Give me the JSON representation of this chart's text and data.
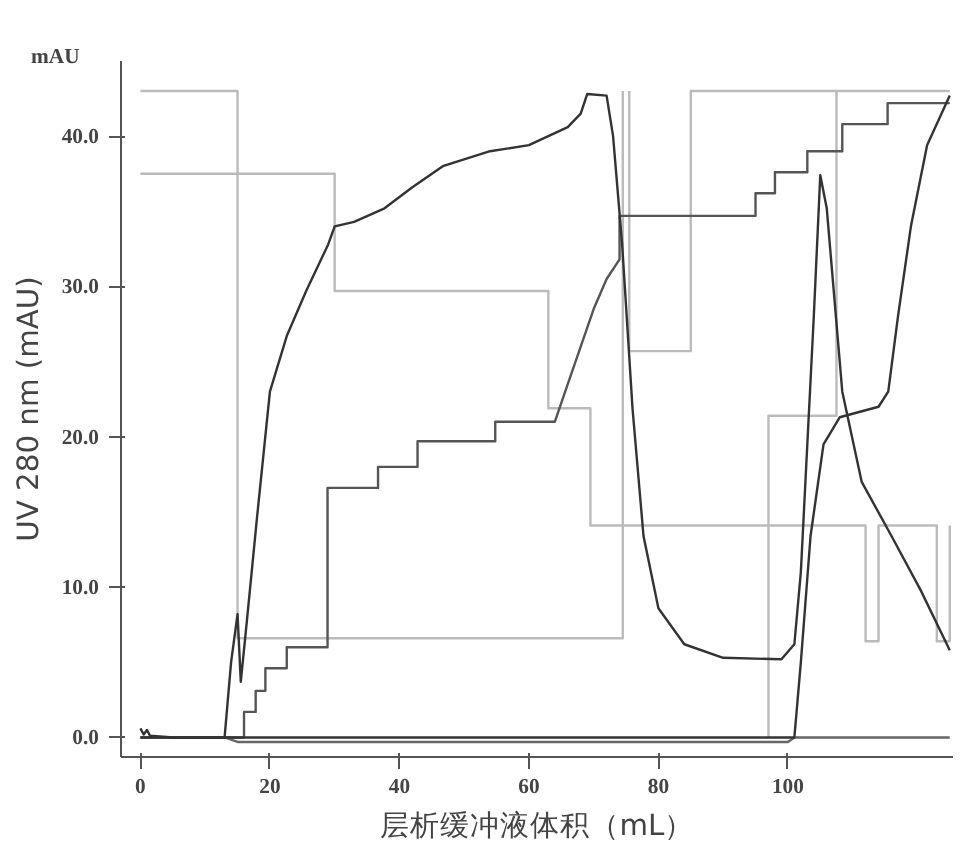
{
  "chart_data": {
    "type": "line",
    "xlabel": "层析缓冲液体积（mL）",
    "ylabel": "UV 280 nm (mAU)",
    "annotations": [
      "mAU"
    ],
    "xlim": [
      -3,
      125.5
    ],
    "ylim": [
      -1.3,
      45
    ],
    "xticks": [
      0,
      20,
      40,
      60,
      80,
      100
    ],
    "yticks": [
      {
        "value": 0,
        "label": "0.0"
      },
      {
        "value": 10,
        "label": "10.0"
      },
      {
        "value": 20,
        "label": "20.0"
      },
      {
        "value": 30,
        "label": "30.0"
      },
      {
        "value": 40,
        "label": "40.0"
      }
    ],
    "grid": false,
    "marker": "none",
    "line_style": "solid",
    "series": [
      {
        "color": "#bbbbbb",
        "x": [
          0,
          15,
          15,
          74.5,
          74.5
        ],
        "values": [
          43,
          43,
          6.6,
          6.6,
          43
        ]
      },
      {
        "color": "#bbbbbb",
        "x": [
          75.5,
          75.5,
          85,
          85,
          125
        ],
        "values": [
          43,
          25.7,
          25.7,
          43,
          43
        ]
      },
      {
        "color": "#bbbbbb",
        "x": [
          0,
          30,
          30,
          63,
          63,
          69.5,
          69.5,
          112,
          112,
          114,
          114,
          123,
          123,
          125,
          125
        ],
        "values": [
          37.5,
          37.5,
          29.7,
          29.7,
          21.9,
          21.9,
          14.1,
          14.1,
          6.4,
          6.4,
          14.1,
          14.1,
          6.4,
          6.4,
          14.1
        ]
      },
      {
        "color": "#bbbbbb",
        "x": [
          97,
          97,
          107.5,
          107.5
        ],
        "values": [
          0,
          21.4,
          21.4,
          43
        ]
      },
      {
        "color": "#555555",
        "x": [
          0,
          16,
          16,
          17.8,
          17.8,
          19.3,
          19.3,
          22.6,
          22.6,
          28.9,
          28.9,
          36.7,
          36.7,
          42.8,
          42.8,
          54.8,
          54.8,
          64,
          66,
          68,
          70,
          72,
          74,
          74,
          75.5,
          75.5,
          95,
          95,
          98,
          98,
          103,
          103,
          108.4,
          108.4,
          115.4,
          115.4,
          125
        ],
        "values": [
          0,
          0,
          1.7,
          1.7,
          3.1,
          3.1,
          4.6,
          4.6,
          6.0,
          6.0,
          16.6,
          16.6,
          18.0,
          18.0,
          19.7,
          19.7,
          21.0,
          21.0,
          23.5,
          26,
          28.5,
          30.5,
          31.8,
          34.7,
          34.7,
          34.7,
          34.7,
          36.2,
          36.2,
          37.6,
          37.6,
          39,
          39,
          40.8,
          40.8,
          42.2,
          42.2
        ]
      },
      {
        "color": "#666666",
        "x": [
          0,
          13,
          15,
          100,
          101,
          125
        ],
        "values": [
          0,
          0,
          -0.3,
          -0.3,
          0,
          0
        ]
      },
      {
        "color": "#333333",
        "x": [
          0,
          0.5,
          1,
          1.5,
          2,
          5,
          13,
          14,
          15,
          15.5,
          16.5,
          18,
          20,
          22.6,
          25.6,
          29,
          30,
          33,
          37.7,
          42,
          46.7,
          54,
          60,
          66,
          68,
          69,
          72,
          73,
          74.4,
          76,
          77.7,
          80,
          84,
          90,
          99,
          101,
          102,
          104,
          105,
          106,
          108.4,
          111.4,
          116,
          120.5,
          125
        ],
        "values": [
          0.6,
          0.2,
          0.5,
          0.1,
          0.1,
          0,
          0,
          5,
          8.2,
          3.7,
          8,
          14.6,
          23,
          26.7,
          29.7,
          32.8,
          34,
          34.3,
          35.2,
          36.6,
          38,
          39,
          39.4,
          40.6,
          41.5,
          42.8,
          42.7,
          40,
          32.8,
          21.9,
          13.4,
          8.6,
          6.2,
          5.3,
          5.2,
          6.2,
          11,
          28,
          37.4,
          35.2,
          23,
          17,
          13.4,
          9.8,
          5.8
        ]
      },
      {
        "color": "#333333",
        "x": [
          0,
          101,
          102,
          103.5,
          105.5,
          108,
          114,
          115.5,
          117,
          119,
          121.5,
          125
        ],
        "values": [
          0,
          0,
          5,
          13.4,
          19.5,
          21.3,
          22,
          23,
          28,
          34,
          39.4,
          42.7
        ]
      }
    ]
  }
}
